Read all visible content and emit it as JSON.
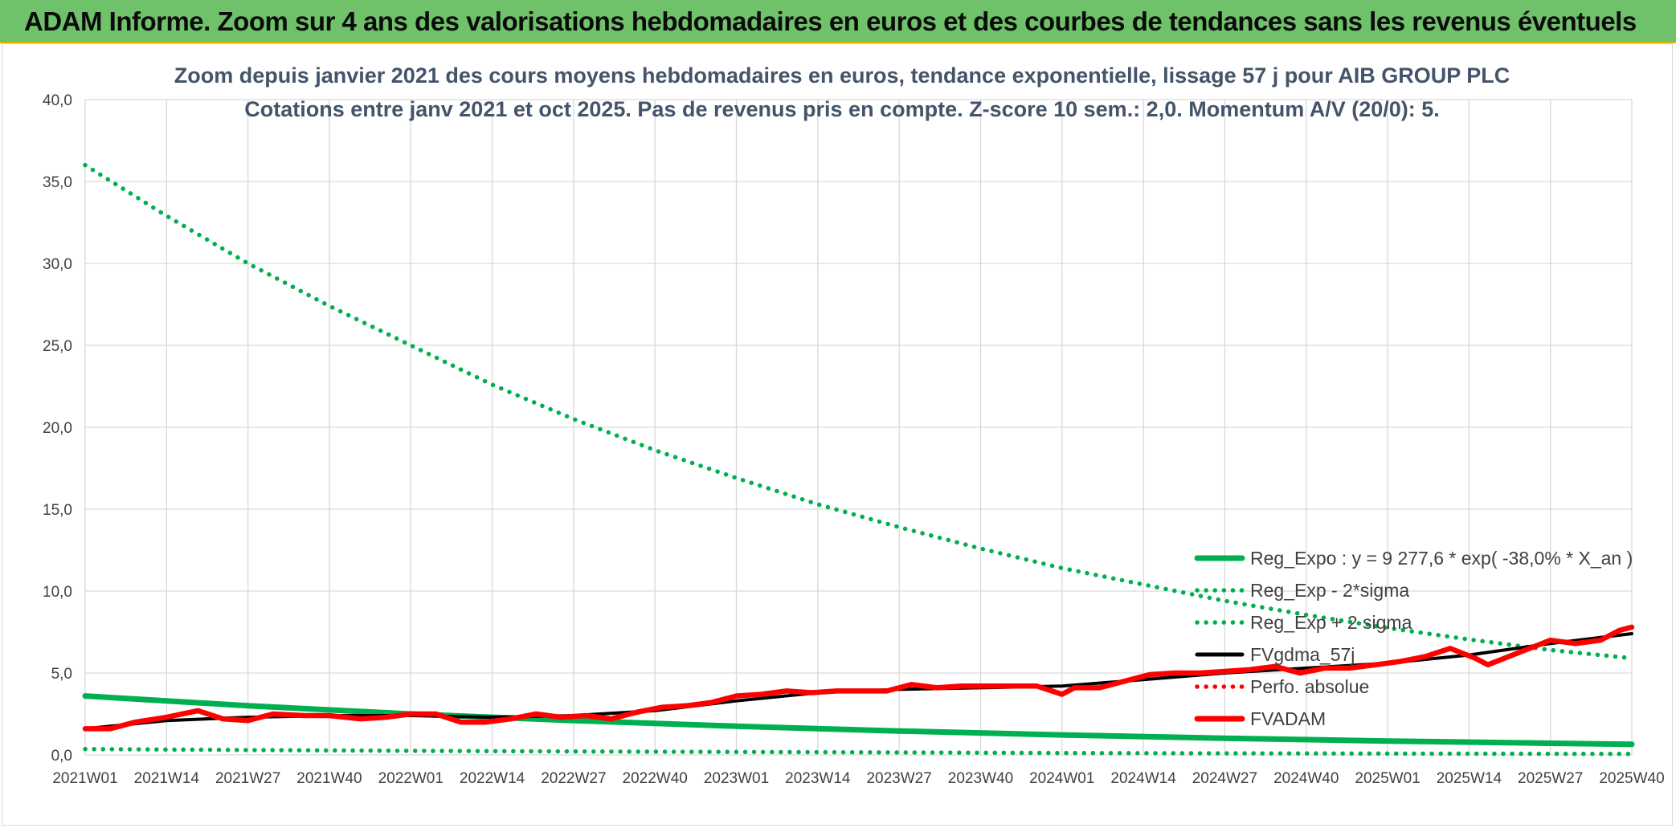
{
  "banner": {
    "title": "ADAM Informe. Zoom sur 4 ans des valorisations hebdomadaires en euros et des courbes de tendances sans les revenus éventuels"
  },
  "chart_data": {
    "type": "line",
    "title_line1": "Zoom depuis janvier 2021 des cours moyens hebdomadaires en euros, tendance exponentielle, lissage 57 j pour AIB GROUP PLC",
    "title_line2": "Cotations entre janv 2021 et oct 2025. Pas de revenus pris en compte. Z-score 10 sem.: 2,0. Momentum A/V (20/0): 5.",
    "xlabel": "",
    "ylabel": "",
    "ylim": [
      0,
      40
    ],
    "grid": true,
    "legend_position": "right",
    "y_ticks": [
      "0,0",
      "5,0",
      "10,0",
      "15,0",
      "20,0",
      "25,0",
      "30,0",
      "35,0",
      "40,0"
    ],
    "y_tick_values": [
      0,
      5,
      10,
      15,
      20,
      25,
      30,
      35,
      40
    ],
    "x_ticks": [
      "2021W01",
      "2021W14",
      "2021W27",
      "2021W40",
      "2022W01",
      "2022W14",
      "2022W27",
      "2022W40",
      "2023W01",
      "2023W14",
      "2023W27",
      "2023W40",
      "2024W01",
      "2024W14",
      "2024W27",
      "2024W40",
      "2025W01",
      "2025W14",
      "2025W27",
      "2025W40"
    ],
    "x_tick_index": [
      0,
      13,
      26,
      39,
      52,
      65,
      78,
      91,
      104,
      117,
      130,
      143,
      156,
      169,
      182,
      195,
      208,
      221,
      234,
      247
    ],
    "series": [
      {
        "name": "Reg_Expo : y = 9 277,6 * exp( -38,0% *  X_an )",
        "style": "solid",
        "color": "#00b050",
        "x": [
          0,
          26,
          52,
          78,
          104,
          130,
          156,
          182,
          208,
          234,
          247
        ],
        "values": [
          3.6,
          3.0,
          2.5,
          2.1,
          1.75,
          1.46,
          1.22,
          1.02,
          0.85,
          0.71,
          0.65
        ]
      },
      {
        "name": "Reg_Exp - 2*sigma",
        "style": "dotted",
        "color": "#00b050",
        "x": [
          0,
          26,
          52,
          78,
          104,
          130,
          156,
          182,
          208,
          234,
          247
        ],
        "values": [
          0.36,
          0.3,
          0.25,
          0.21,
          0.18,
          0.15,
          0.12,
          0.1,
          0.085,
          0.071,
          0.065
        ]
      },
      {
        "name": "Reg_Exp + 2 sigma",
        "style": "dotted",
        "color": "#00b050",
        "x": [
          0,
          13,
          26,
          39,
          52,
          65,
          78,
          91,
          104,
          117,
          130,
          143,
          156,
          169,
          182,
          195,
          208,
          221,
          234,
          247
        ],
        "values": [
          36.0,
          32.9,
          30.0,
          27.4,
          25.0,
          22.6,
          20.5,
          18.6,
          16.9,
          15.3,
          13.9,
          12.6,
          11.4,
          10.4,
          9.4,
          8.55,
          7.75,
          7.05,
          6.4,
          5.9
        ]
      },
      {
        "name": "FVgdma_57j",
        "style": "solid",
        "color": "#000000",
        "x": [
          0,
          13,
          26,
          39,
          52,
          65,
          78,
          91,
          104,
          117,
          130,
          143,
          156,
          169,
          182,
          195,
          208,
          221,
          234,
          247
        ],
        "values": [
          1.6,
          2.1,
          2.3,
          2.4,
          2.4,
          2.3,
          2.4,
          2.7,
          3.3,
          3.8,
          4.0,
          4.1,
          4.2,
          4.6,
          5.0,
          5.3,
          5.6,
          6.1,
          6.8,
          7.4
        ]
      },
      {
        "name": "Perfo. absolue",
        "style": "dotted",
        "color": "#ff0000",
        "x": [],
        "values": []
      },
      {
        "name": "FVADAM",
        "style": "solid",
        "color": "#ff0000",
        "x": [
          0,
          4,
          8,
          13,
          18,
          22,
          26,
          30,
          35,
          39,
          44,
          48,
          52,
          56,
          60,
          64,
          68,
          72,
          76,
          80,
          84,
          88,
          92,
          96,
          100,
          104,
          108,
          112,
          116,
          120,
          124,
          128,
          132,
          136,
          140,
          144,
          148,
          152,
          156,
          158,
          162,
          166,
          170,
          174,
          178,
          182,
          186,
          190,
          194,
          198,
          202,
          206,
          210,
          214,
          218,
          222,
          224,
          226,
          230,
          234,
          238,
          242,
          245,
          247
        ],
        "values": [
          1.6,
          1.6,
          2.0,
          2.3,
          2.7,
          2.2,
          2.1,
          2.5,
          2.4,
          2.4,
          2.2,
          2.3,
          2.5,
          2.5,
          2.0,
          2.0,
          2.2,
          2.5,
          2.3,
          2.4,
          2.2,
          2.6,
          2.9,
          3.0,
          3.2,
          3.6,
          3.7,
          3.9,
          3.8,
          3.9,
          3.9,
          3.9,
          4.3,
          4.1,
          4.2,
          4.2,
          4.2,
          4.2,
          3.7,
          4.1,
          4.1,
          4.5,
          4.9,
          5.0,
          5.0,
          5.1,
          5.2,
          5.4,
          5.0,
          5.3,
          5.3,
          5.5,
          5.7,
          6.0,
          6.5,
          5.9,
          5.5,
          5.8,
          6.4,
          7.0,
          6.8,
          7.0,
          7.6,
          7.8
        ]
      }
    ]
  }
}
